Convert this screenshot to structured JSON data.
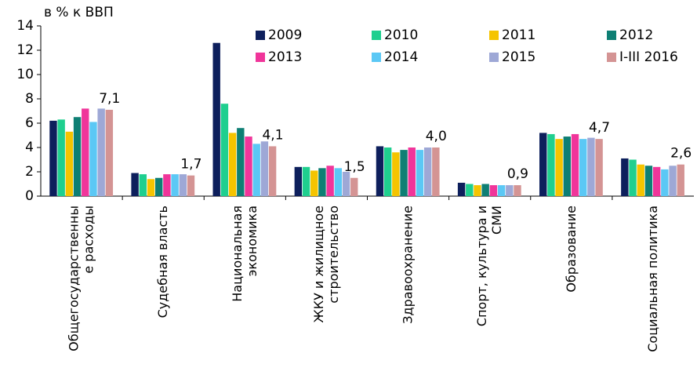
{
  "chart_data": {
    "type": "bar",
    "y_label": "в % к ВВП",
    "categories": [
      "Общегосударственны\nе расходы",
      "Судебная власть",
      "Национальная\nэкономика",
      "ЖКУ и жилищное\nстроительство",
      "Здравоохранение",
      "Спорт, культура и\nСМИ",
      "Образование",
      "Социальная политика"
    ],
    "series": [
      {
        "name": "2009",
        "color": "#0d1f5c",
        "values": [
          6.2,
          1.9,
          12.6,
          2.4,
          4.1,
          1.1,
          5.2,
          3.1
        ]
      },
      {
        "name": "2010",
        "color": "#1fcf8f",
        "values": [
          6.3,
          1.8,
          7.6,
          2.4,
          4.0,
          1.0,
          5.1,
          3.0
        ]
      },
      {
        "name": "2011",
        "color": "#f5c400",
        "values": [
          5.3,
          1.4,
          5.2,
          2.1,
          3.6,
          0.9,
          4.7,
          2.6
        ]
      },
      {
        "name": "2012",
        "color": "#0e7f74",
        "values": [
          6.5,
          1.5,
          5.6,
          2.3,
          3.8,
          1.0,
          4.9,
          2.5
        ]
      },
      {
        "name": "2013",
        "color": "#f0359a",
        "values": [
          7.2,
          1.8,
          4.9,
          2.5,
          4.0,
          0.9,
          5.1,
          2.4
        ]
      },
      {
        "name": "2014",
        "color": "#5bc8f5",
        "values": [
          6.1,
          1.8,
          4.3,
          2.3,
          3.8,
          0.9,
          4.7,
          2.2
        ]
      },
      {
        "name": "2015",
        "color": "#9ea8d6",
        "values": [
          7.2,
          1.8,
          4.5,
          2.0,
          4.0,
          0.9,
          4.8,
          2.5
        ]
      },
      {
        "name": "I-III 2016",
        "color": "#d49494",
        "values": [
          7.1,
          1.7,
          4.1,
          1.5,
          4.0,
          0.9,
          4.7,
          2.6
        ],
        "value_labels": [
          "7,1",
          "1,7",
          "4,1",
          "1,5",
          "4,0",
          "0,9",
          "4,7",
          "2,6"
        ]
      }
    ],
    "ylim": [
      0,
      14
    ],
    "yticks": [
      0,
      2,
      4,
      6,
      8,
      10,
      12,
      14
    ],
    "grid": false
  }
}
